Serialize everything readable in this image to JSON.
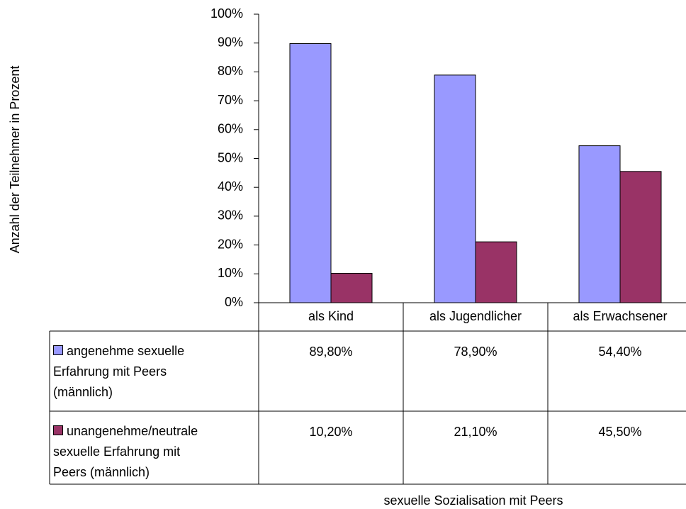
{
  "chart_data": {
    "type": "bar",
    "y_label": "Anzahl der Teilnehmer in Prozent",
    "x_label": "sexuelle Sozialisation mit Peers",
    "categories": [
      "als Kind",
      "als Jugendlicher",
      "als Erwachsener"
    ],
    "series": [
      {
        "name": "angenehme sexuelle Erfahrung mit Peers (männlich)",
        "color": "#9999ff",
        "values": [
          89.8,
          78.9,
          54.4
        ],
        "value_labels": [
          "89,80%",
          "78,90%",
          "54,40%"
        ]
      },
      {
        "name": "unangenehme/neutrale sexuelle Erfahrung mit Peers (männlich)",
        "color": "#993366",
        "values": [
          10.2,
          21.1,
          45.5
        ],
        "value_labels": [
          "10,20%",
          "21,10%",
          "45,50%"
        ]
      }
    ],
    "ylim": [
      0,
      100
    ],
    "yticks": [
      {
        "value": 0,
        "label": "0%"
      },
      {
        "value": 10,
        "label": "10%"
      },
      {
        "value": 20,
        "label": "20%"
      },
      {
        "value": 30,
        "label": "30%"
      },
      {
        "value": 40,
        "label": "40%"
      },
      {
        "value": 50,
        "label": "50%"
      },
      {
        "value": 60,
        "label": "60%"
      },
      {
        "value": 70,
        "label": "70%"
      },
      {
        "value": 80,
        "label": "80%"
      },
      {
        "value": 90,
        "label": "90%"
      },
      {
        "value": 100,
        "label": "100%"
      }
    ],
    "grid": false
  }
}
